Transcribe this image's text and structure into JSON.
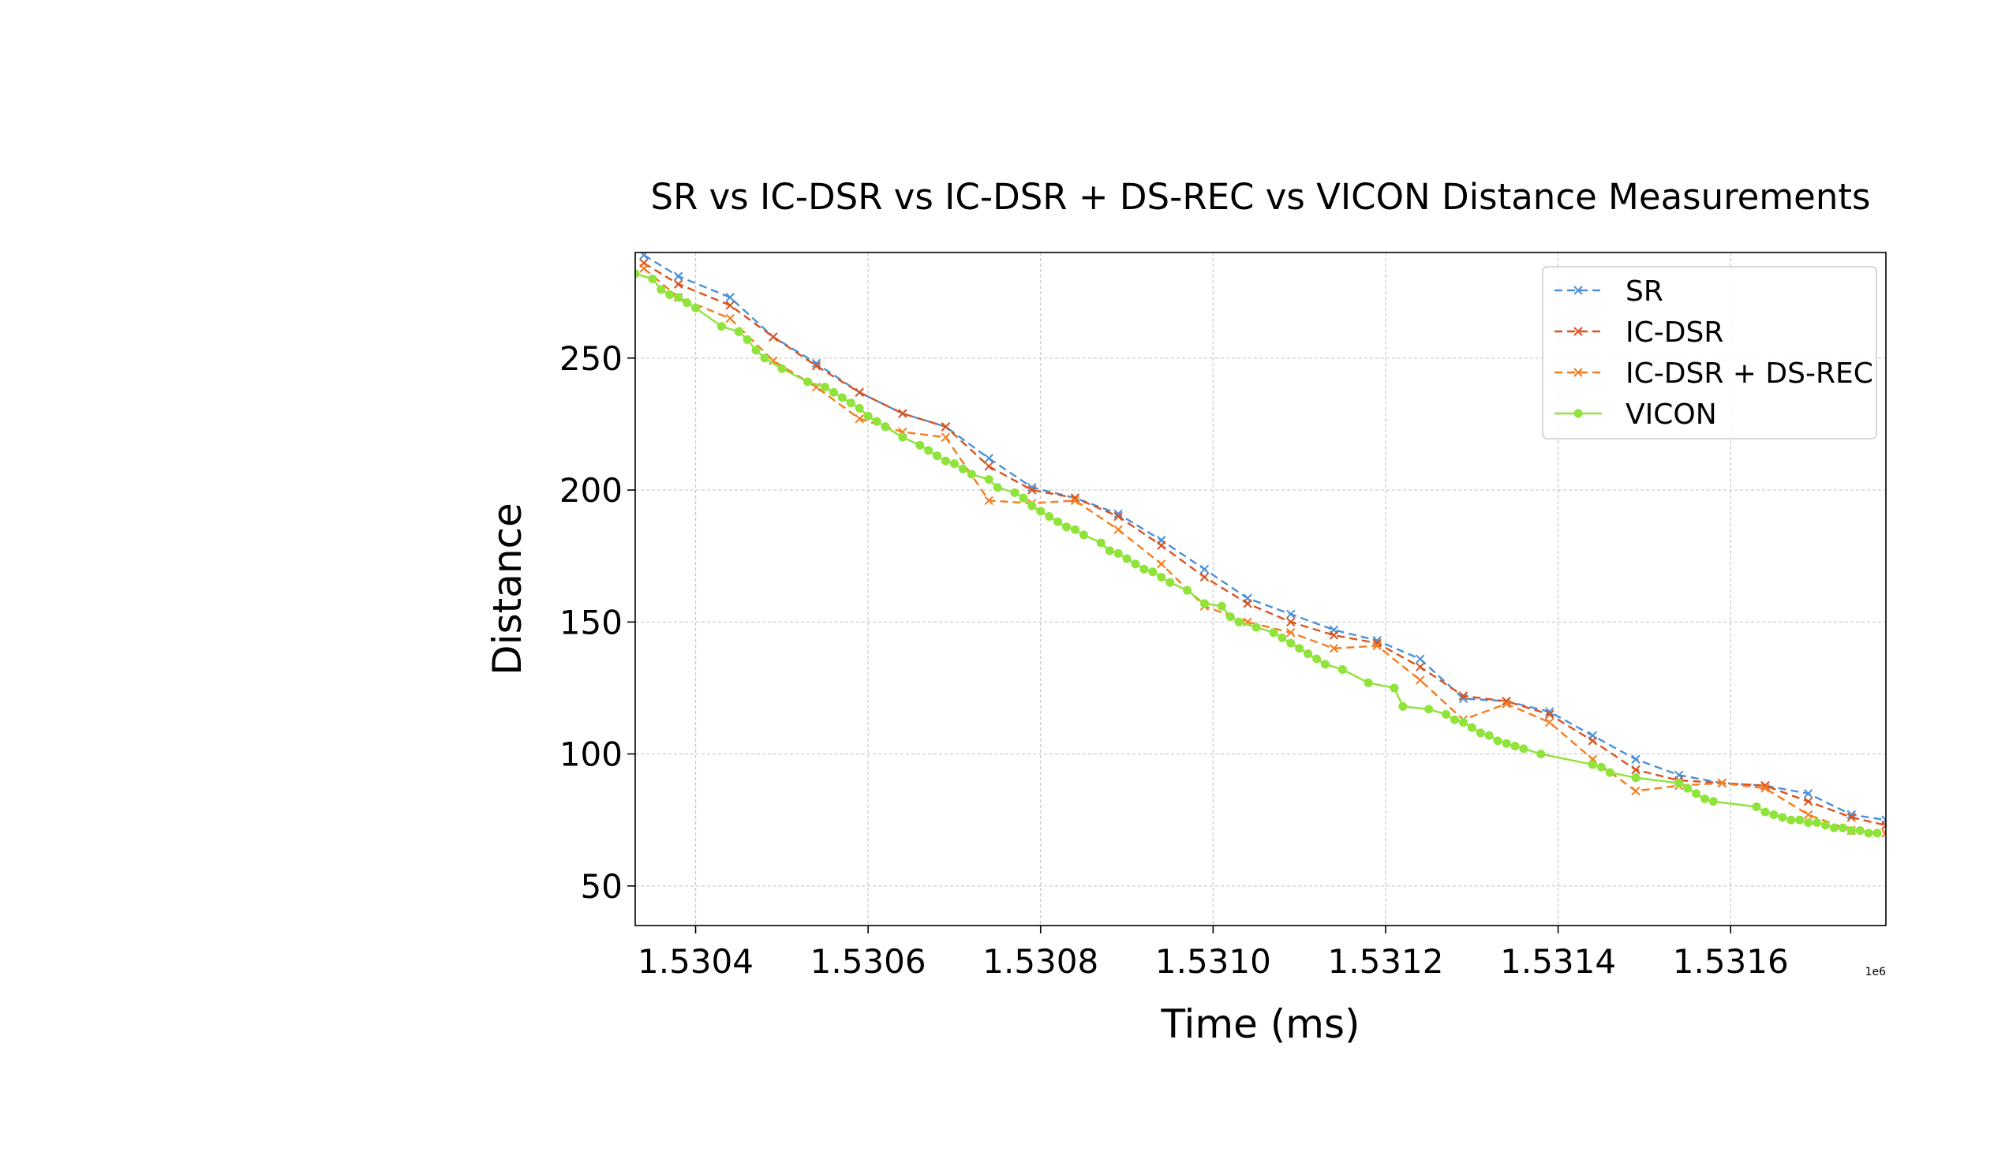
{
  "chart_data": {
    "type": "line",
    "title": "SR vs IC-DSR vs IC-DSR + DS-REC vs VICON Distance Measurements",
    "xlabel": "Time (ms)",
    "ylabel": "Distance",
    "x_offset_label": "1e6",
    "x_tick_values": [
      1.5304,
      1.5306,
      1.5308,
      1.531,
      1.5312,
      1.5314,
      1.5316
    ],
    "x_tick_labels": [
      "1.5304",
      "1.5306",
      "1.5308",
      "1.5310",
      "1.5312",
      "1.5314",
      "1.5316"
    ],
    "y_tick_values": [
      50,
      100,
      150,
      200,
      250
    ],
    "y_tick_labels": [
      "50",
      "100",
      "150",
      "200",
      "250"
    ],
    "xlim": [
      1.53033,
      1.53178
    ],
    "ylim": [
      35,
      290
    ],
    "grid": true,
    "legend_position": "upper right",
    "series": [
      {
        "name": "SR",
        "color": "#4a90d9",
        "line_style": "dashed",
        "marker": "x",
        "x": [
          1.53034,
          1.53038,
          1.53044,
          1.53049,
          1.53054,
          1.53059,
          1.53064,
          1.53069,
          1.53074,
          1.53079,
          1.53084,
          1.53089,
          1.53094,
          1.53099,
          1.53104,
          1.53109,
          1.53114,
          1.53119,
          1.53124,
          1.53129,
          1.53134,
          1.53139,
          1.53144,
          1.53149,
          1.53154,
          1.53159,
          1.53164,
          1.53169,
          1.53174,
          1.53178
        ],
        "y": [
          289,
          281,
          273,
          258,
          248,
          237,
          229,
          224,
          212,
          201,
          197,
          191,
          181,
          170,
          159,
          153,
          147,
          143,
          136,
          121,
          120,
          116,
          107,
          98,
          92,
          89,
          88,
          85,
          77,
          75
        ]
      },
      {
        "name": "IC-DSR",
        "color": "#d9531e",
        "line_style": "dashed",
        "marker": "x",
        "x": [
          1.53034,
          1.53038,
          1.53044,
          1.53049,
          1.53054,
          1.53059,
          1.53064,
          1.53069,
          1.53074,
          1.53079,
          1.53084,
          1.53089,
          1.53094,
          1.53099,
          1.53104,
          1.53109,
          1.53114,
          1.53119,
          1.53124,
          1.53129,
          1.53134,
          1.53139,
          1.53144,
          1.53149,
          1.53154,
          1.53159,
          1.53164,
          1.53169,
          1.53174,
          1.53178
        ],
        "y": [
          286,
          278,
          270,
          258,
          247,
          237,
          229,
          224,
          209,
          200,
          197,
          190,
          179,
          167,
          157,
          150,
          145,
          142,
          133,
          122,
          120,
          115,
          105,
          94,
          90,
          89,
          88,
          82,
          76,
          73
        ]
      },
      {
        "name": "IC-DSR + DS-REC",
        "color": "#f57c1f",
        "line_style": "dashed",
        "marker": "x",
        "x": [
          1.53034,
          1.53038,
          1.53044,
          1.53049,
          1.53054,
          1.53059,
          1.53064,
          1.53069,
          1.53074,
          1.53079,
          1.53084,
          1.53089,
          1.53094,
          1.53099,
          1.53104,
          1.53109,
          1.53114,
          1.53119,
          1.53124,
          1.53129,
          1.53134,
          1.53139,
          1.53144,
          1.53149,
          1.53154,
          1.53159,
          1.53164,
          1.53169,
          1.53174,
          1.53178
        ],
        "y": [
          284,
          273,
          265,
          249,
          239,
          227,
          222,
          220,
          196,
          195,
          196,
          185,
          172,
          156,
          150,
          146,
          140,
          141,
          128,
          113,
          119,
          112,
          98,
          86,
          88,
          89,
          87,
          77,
          71,
          70
        ]
      },
      {
        "name": "VICON",
        "color": "#8fe33a",
        "line_style": "solid",
        "marker": "o",
        "x": [
          1.53033,
          1.53035,
          1.53036,
          1.53037,
          1.53038,
          1.53039,
          1.5304,
          1.53043,
          1.53045,
          1.53046,
          1.53047,
          1.53048,
          1.5305,
          1.53053,
          1.53055,
          1.53056,
          1.53057,
          1.53058,
          1.53059,
          1.5306,
          1.53061,
          1.53062,
          1.53064,
          1.53066,
          1.53067,
          1.53068,
          1.53069,
          1.5307,
          1.53071,
          1.53072,
          1.53074,
          1.53075,
          1.53077,
          1.53078,
          1.53079,
          1.5308,
          1.53081,
          1.53082,
          1.53083,
          1.53084,
          1.53085,
          1.53087,
          1.53088,
          1.53089,
          1.5309,
          1.53091,
          1.53092,
          1.53093,
          1.53094,
          1.53095,
          1.53097,
          1.53099,
          1.53101,
          1.53102,
          1.53103,
          1.53105,
          1.53107,
          1.53108,
          1.53109,
          1.5311,
          1.53111,
          1.53112,
          1.53113,
          1.53115,
          1.53118,
          1.53121,
          1.53122,
          1.53125,
          1.53127,
          1.53128,
          1.53129,
          1.5313,
          1.53131,
          1.53132,
          1.53133,
          1.53134,
          1.53135,
          1.53136,
          1.53138,
          1.53144,
          1.53145,
          1.53146,
          1.53149,
          1.53154,
          1.53155,
          1.53156,
          1.53157,
          1.53158,
          1.53163,
          1.53164,
          1.53165,
          1.53166,
          1.53167,
          1.53168,
          1.53169,
          1.5317,
          1.53171,
          1.53172,
          1.53173,
          1.53174,
          1.53175,
          1.53176,
          1.53177
        ],
        "y": [
          282,
          280,
          276,
          274,
          273,
          271,
          269,
          262,
          260,
          257,
          253,
          250,
          246,
          241,
          239,
          237,
          235,
          233,
          231,
          228,
          226,
          224,
          220,
          217,
          215,
          213,
          211,
          210,
          208,
          206,
          204,
          201,
          199,
          197,
          194,
          192,
          190,
          188,
          186,
          185,
          183,
          180,
          177,
          176,
          174,
          172,
          170,
          169,
          167,
          165,
          162,
          157,
          156,
          152,
          150,
          148,
          146,
          144,
          142,
          140,
          138,
          136,
          134,
          132,
          127,
          125,
          118,
          117,
          115,
          113,
          112,
          110,
          108,
          107,
          105,
          104,
          103,
          102,
          100,
          96,
          95,
          93,
          91,
          89,
          87,
          85,
          83,
          82,
          80,
          78,
          77,
          76,
          75,
          75,
          74,
          74,
          73,
          72,
          72,
          71,
          71,
          70,
          70
        ]
      }
    ]
  }
}
